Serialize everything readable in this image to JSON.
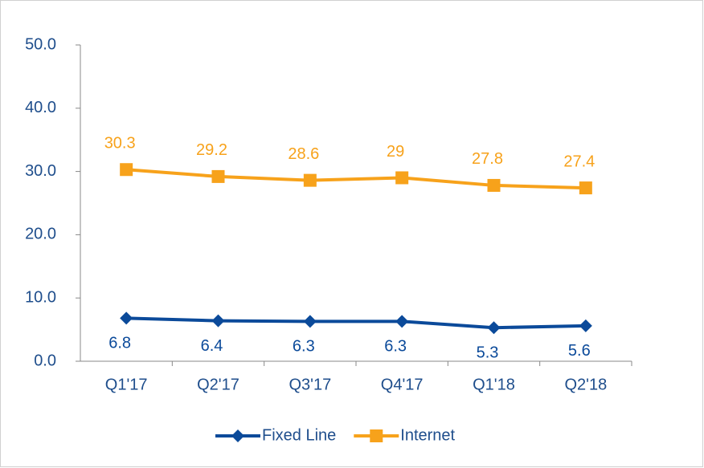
{
  "chart_data": {
    "type": "line",
    "categories": [
      "Q1'17",
      "Q2'17",
      "Q3'17",
      "Q4'17",
      "Q1'18",
      "Q2'18"
    ],
    "series": [
      {
        "name": "Fixed Line",
        "color": "#0b4a9a",
        "marker": "diamond",
        "values": [
          6.8,
          6.4,
          6.3,
          6.3,
          5.3,
          5.6
        ]
      },
      {
        "name": "Internet",
        "color": "#f7a21b",
        "marker": "square",
        "values": [
          30.3,
          29.2,
          28.6,
          29,
          27.8,
          27.4
        ]
      }
    ],
    "ylim": [
      0,
      50
    ],
    "yticks": [
      {
        "value": 0,
        "label": "0.0"
      },
      {
        "value": 10,
        "label": "10.0"
      },
      {
        "value": 20,
        "label": "20.0"
      },
      {
        "value": 30,
        "label": "30.0"
      },
      {
        "value": 40,
        "label": "40.0"
      },
      {
        "value": 50,
        "label": "50.0"
      }
    ],
    "grid": false,
    "legend": "bottom"
  }
}
